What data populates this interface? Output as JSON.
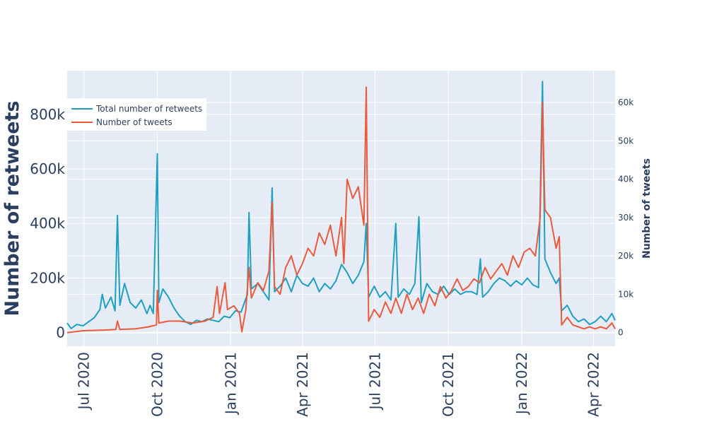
{
  "chart_data": {
    "type": "line",
    "title": "",
    "xlabel": "",
    "ylabel": "Number of retweets",
    "y2label": "Number of tweets",
    "xlim": [
      "2020-06-10",
      "2022-04-28"
    ],
    "ylim": [
      -50000,
      960000
    ],
    "y2lim": [
      -3560,
      68300
    ],
    "x_ticks": [
      {
        "date": "2020-07-01",
        "label": "Jul 2020"
      },
      {
        "date": "2020-10-01",
        "label": "Oct 2020"
      },
      {
        "date": "2021-01-01",
        "label": "Jan 2021"
      },
      {
        "date": "2021-04-01",
        "label": "Apr 2021"
      },
      {
        "date": "2021-07-01",
        "label": "Jul 2021"
      },
      {
        "date": "2021-10-01",
        "label": "Oct 2021"
      },
      {
        "date": "2022-01-01",
        "label": "Jan 2022"
      },
      {
        "date": "2022-04-01",
        "label": "Apr 2022"
      }
    ],
    "y_ticks": [
      {
        "value": 0,
        "label": "0"
      },
      {
        "value": 200000,
        "label": "200k"
      },
      {
        "value": 400000,
        "label": "400k"
      },
      {
        "value": 600000,
        "label": "600k"
      },
      {
        "value": 800000,
        "label": "800k"
      }
    ],
    "y2_ticks": [
      {
        "value": 0,
        "label": "0"
      },
      {
        "value": 10000,
        "label": "10k"
      },
      {
        "value": 20000,
        "label": "20k"
      },
      {
        "value": 30000,
        "label": "30k"
      },
      {
        "value": 40000,
        "label": "40k"
      },
      {
        "value": 50000,
        "label": "50k"
      },
      {
        "value": 60000,
        "label": "60k"
      }
    ],
    "grid": true,
    "legend_position": "top-left",
    "series": [
      {
        "name": "Total number of retweets",
        "axis": "left",
        "color": "#1f9fc2",
        "points": [
          [
            "2020-06-10",
            35000
          ],
          [
            "2020-06-15",
            15000
          ],
          [
            "2020-06-22",
            30000
          ],
          [
            "2020-06-30",
            25000
          ],
          [
            "2020-07-07",
            40000
          ],
          [
            "2020-07-14",
            55000
          ],
          [
            "2020-07-21",
            85000
          ],
          [
            "2020-07-24",
            140000
          ],
          [
            "2020-07-28",
            90000
          ],
          [
            "2020-08-04",
            130000
          ],
          [
            "2020-08-09",
            80000
          ],
          [
            "2020-08-12",
            430000
          ],
          [
            "2020-08-15",
            100000
          ],
          [
            "2020-08-21",
            180000
          ],
          [
            "2020-08-28",
            110000
          ],
          [
            "2020-09-04",
            90000
          ],
          [
            "2020-09-11",
            120000
          ],
          [
            "2020-09-18",
            70000
          ],
          [
            "2020-09-22",
            100000
          ],
          [
            "2020-09-26",
            70000
          ],
          [
            "2020-10-01",
            655000
          ],
          [
            "2020-10-03",
            110000
          ],
          [
            "2020-10-08",
            160000
          ],
          [
            "2020-10-15",
            130000
          ],
          [
            "2020-10-22",
            90000
          ],
          [
            "2020-10-29",
            60000
          ],
          [
            "2020-11-05",
            40000
          ],
          [
            "2020-11-12",
            30000
          ],
          [
            "2020-11-19",
            45000
          ],
          [
            "2020-11-26",
            40000
          ],
          [
            "2020-12-03",
            50000
          ],
          [
            "2020-12-10",
            45000
          ],
          [
            "2020-12-17",
            40000
          ],
          [
            "2020-12-24",
            60000
          ],
          [
            "2020-12-31",
            55000
          ],
          [
            "2021-01-07",
            80000
          ],
          [
            "2021-01-14",
            75000
          ],
          [
            "2021-01-22",
            140000
          ],
          [
            "2021-01-24",
            440000
          ],
          [
            "2021-01-27",
            160000
          ],
          [
            "2021-02-04",
            180000
          ],
          [
            "2021-02-11",
            150000
          ],
          [
            "2021-02-18",
            120000
          ],
          [
            "2021-02-22",
            530000
          ],
          [
            "2021-02-25",
            150000
          ],
          [
            "2021-03-04",
            170000
          ],
          [
            "2021-03-11",
            200000
          ],
          [
            "2021-03-18",
            150000
          ],
          [
            "2021-03-25",
            210000
          ],
          [
            "2021-04-01",
            180000
          ],
          [
            "2021-04-08",
            170000
          ],
          [
            "2021-04-15",
            200000
          ],
          [
            "2021-04-22",
            150000
          ],
          [
            "2021-04-29",
            180000
          ],
          [
            "2021-05-06",
            160000
          ],
          [
            "2021-05-13",
            190000
          ],
          [
            "2021-05-20",
            250000
          ],
          [
            "2021-05-27",
            220000
          ],
          [
            "2021-06-03",
            180000
          ],
          [
            "2021-06-10",
            210000
          ],
          [
            "2021-06-17",
            260000
          ],
          [
            "2021-06-20",
            400000
          ],
          [
            "2021-06-23",
            130000
          ],
          [
            "2021-06-30",
            170000
          ],
          [
            "2021-07-07",
            130000
          ],
          [
            "2021-07-14",
            150000
          ],
          [
            "2021-07-21",
            120000
          ],
          [
            "2021-07-27",
            400000
          ],
          [
            "2021-07-30",
            130000
          ],
          [
            "2021-08-06",
            160000
          ],
          [
            "2021-08-13",
            140000
          ],
          [
            "2021-08-20",
            180000
          ],
          [
            "2021-08-25",
            425000
          ],
          [
            "2021-08-28",
            110000
          ],
          [
            "2021-09-04",
            180000
          ],
          [
            "2021-09-11",
            150000
          ],
          [
            "2021-09-18",
            140000
          ],
          [
            "2021-09-25",
            170000
          ],
          [
            "2021-10-02",
            140000
          ],
          [
            "2021-10-09",
            160000
          ],
          [
            "2021-10-16",
            140000
          ],
          [
            "2021-10-23",
            150000
          ],
          [
            "2021-10-30",
            150000
          ],
          [
            "2021-11-06",
            140000
          ],
          [
            "2021-11-10",
            270000
          ],
          [
            "2021-11-13",
            130000
          ],
          [
            "2021-11-20",
            150000
          ],
          [
            "2021-11-27",
            180000
          ],
          [
            "2021-12-04",
            200000
          ],
          [
            "2021-12-11",
            190000
          ],
          [
            "2021-12-18",
            170000
          ],
          [
            "2021-12-25",
            190000
          ],
          [
            "2022-01-01",
            175000
          ],
          [
            "2022-01-08",
            200000
          ],
          [
            "2022-01-15",
            175000
          ],
          [
            "2022-01-22",
            165000
          ],
          [
            "2022-01-27",
            920000
          ],
          [
            "2022-01-30",
            270000
          ],
          [
            "2022-02-06",
            220000
          ],
          [
            "2022-02-13",
            180000
          ],
          [
            "2022-02-17",
            200000
          ],
          [
            "2022-02-20",
            80000
          ],
          [
            "2022-02-27",
            100000
          ],
          [
            "2022-03-06",
            60000
          ],
          [
            "2022-03-13",
            40000
          ],
          [
            "2022-03-20",
            50000
          ],
          [
            "2022-03-27",
            30000
          ],
          [
            "2022-04-03",
            40000
          ],
          [
            "2022-04-10",
            60000
          ],
          [
            "2022-04-17",
            40000
          ],
          [
            "2022-04-24",
            70000
          ],
          [
            "2022-04-28",
            45000
          ]
        ]
      },
      {
        "name": "Number of tweets",
        "axis": "right",
        "color": "#ea5a3c",
        "points": [
          [
            "2020-06-10",
            0
          ],
          [
            "2020-06-30",
            500
          ],
          [
            "2020-07-31",
            700
          ],
          [
            "2020-08-10",
            800
          ],
          [
            "2020-08-12",
            3000
          ],
          [
            "2020-08-15",
            800
          ],
          [
            "2020-09-04",
            1000
          ],
          [
            "2020-09-20",
            1500
          ],
          [
            "2020-09-30",
            2000
          ],
          [
            "2020-10-01",
            11000
          ],
          [
            "2020-10-03",
            2500
          ],
          [
            "2020-10-15",
            3000
          ],
          [
            "2020-10-29",
            3000
          ],
          [
            "2020-11-15",
            2500
          ],
          [
            "2020-11-30",
            3000
          ],
          [
            "2020-12-10",
            4000
          ],
          [
            "2020-12-15",
            12000
          ],
          [
            "2020-12-18",
            5000
          ],
          [
            "2020-12-25",
            13000
          ],
          [
            "2020-12-28",
            6000
          ],
          [
            "2021-01-05",
            7000
          ],
          [
            "2021-01-12",
            5000
          ],
          [
            "2021-01-15",
            200
          ],
          [
            "2021-01-20",
            6000
          ],
          [
            "2021-01-24",
            17000
          ],
          [
            "2021-01-27",
            9000
          ],
          [
            "2021-02-04",
            13000
          ],
          [
            "2021-02-11",
            11000
          ],
          [
            "2021-02-18",
            16000
          ],
          [
            "2021-02-22",
            34000
          ],
          [
            "2021-02-25",
            12000
          ],
          [
            "2021-03-04",
            10000
          ],
          [
            "2021-03-11",
            17000
          ],
          [
            "2021-03-18",
            20000
          ],
          [
            "2021-03-25",
            15000
          ],
          [
            "2021-04-01",
            18000
          ],
          [
            "2021-04-08",
            22000
          ],
          [
            "2021-04-15",
            20000
          ],
          [
            "2021-04-22",
            26000
          ],
          [
            "2021-04-29",
            23000
          ],
          [
            "2021-05-06",
            28000
          ],
          [
            "2021-05-13",
            20000
          ],
          [
            "2021-05-20",
            30000
          ],
          [
            "2021-05-23",
            18000
          ],
          [
            "2021-05-27",
            40000
          ],
          [
            "2021-06-03",
            35000
          ],
          [
            "2021-06-10",
            38000
          ],
          [
            "2021-06-17",
            28000
          ],
          [
            "2021-06-20",
            64000
          ],
          [
            "2021-06-23",
            3000
          ],
          [
            "2021-06-30",
            6000
          ],
          [
            "2021-07-07",
            4000
          ],
          [
            "2021-07-14",
            8000
          ],
          [
            "2021-07-21",
            5000
          ],
          [
            "2021-07-27",
            9000
          ],
          [
            "2021-08-03",
            5000
          ],
          [
            "2021-08-10",
            10000
          ],
          [
            "2021-08-17",
            6000
          ],
          [
            "2021-08-24",
            9000
          ],
          [
            "2021-08-31",
            5000
          ],
          [
            "2021-09-07",
            10000
          ],
          [
            "2021-09-14",
            7000
          ],
          [
            "2021-09-21",
            12000
          ],
          [
            "2021-09-28",
            9000
          ],
          [
            "2021-10-05",
            11000
          ],
          [
            "2021-10-12",
            14000
          ],
          [
            "2021-10-19",
            11000
          ],
          [
            "2021-10-26",
            12000
          ],
          [
            "2021-11-02",
            14000
          ],
          [
            "2021-11-09",
            13000
          ],
          [
            "2021-11-16",
            17000
          ],
          [
            "2021-11-23",
            14000
          ],
          [
            "2021-11-30",
            16000
          ],
          [
            "2021-12-07",
            18000
          ],
          [
            "2021-12-14",
            15000
          ],
          [
            "2021-12-21",
            20000
          ],
          [
            "2021-12-28",
            17000
          ],
          [
            "2022-01-04",
            21000
          ],
          [
            "2022-01-11",
            22000
          ],
          [
            "2022-01-18",
            20000
          ],
          [
            "2022-01-24",
            30000
          ],
          [
            "2022-01-27",
            60000
          ],
          [
            "2022-01-30",
            32000
          ],
          [
            "2022-02-06",
            30000
          ],
          [
            "2022-02-13",
            22000
          ],
          [
            "2022-02-17",
            25000
          ],
          [
            "2022-02-20",
            2000
          ],
          [
            "2022-02-27",
            4000
          ],
          [
            "2022-03-06",
            2000
          ],
          [
            "2022-03-13",
            1500
          ],
          [
            "2022-03-20",
            1000
          ],
          [
            "2022-03-27",
            1500
          ],
          [
            "2022-04-03",
            1000
          ],
          [
            "2022-04-10",
            1500
          ],
          [
            "2022-04-17",
            1000
          ],
          [
            "2022-04-24",
            2500
          ],
          [
            "2022-04-28",
            1000
          ]
        ]
      }
    ]
  }
}
